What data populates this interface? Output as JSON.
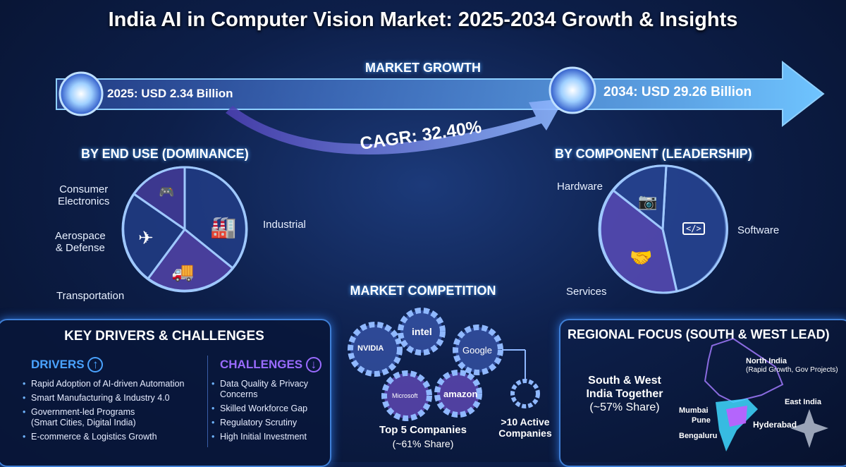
{
  "title": "India AI in Computer Vision Market: 2025-2034 Growth & Insights",
  "growth": {
    "heading": "MARKET GROWTH",
    "start": "2025: USD 2.34 Billion",
    "end": "2034: USD 29.26 Billion",
    "cagr": "CAGR: 32.40%"
  },
  "end_use": {
    "heading": "BY END USE (DOMINANCE)",
    "segments": [
      {
        "label": "Industrial",
        "icon": "factory-robot-icon"
      },
      {
        "label": "Transportation",
        "icon": "truck-icon"
      },
      {
        "label": "Aerospace\n& Defense",
        "icon": "airplane-icon"
      },
      {
        "label": "Consumer\nElectronics",
        "icon": "gadgets-icon"
      }
    ]
  },
  "component": {
    "heading": "BY COMPONENT (LEADERSHIP)",
    "segments": [
      {
        "label": "Software",
        "icon": "code-window-icon"
      },
      {
        "label": "Services",
        "icon": "handshake-icon"
      },
      {
        "label": "Hardware",
        "icon": "camera-icon"
      }
    ]
  },
  "competition": {
    "heading": "MARKET COMPETITION",
    "companies": [
      "NVIDIA",
      "intel",
      "Google",
      "Microsoft",
      "amazon"
    ],
    "top5": "Top 5 Companies",
    "top5_share": "(~61% Share)",
    "active": ">10 Active",
    "active2": "Companies"
  },
  "drivers_panel": {
    "heading": "KEY DRIVERS & CHALLENGES",
    "drivers_title": "DRIVERS",
    "drivers": [
      "Rapid Adoption of AI-driven Automation",
      "Smart Manufacturing & Industry 4.0",
      "Government-led Programs (Smart Cities, Digital India)",
      "E-commerce & Logistics Growth"
    ],
    "challenges_title": "CHALLENGES",
    "challenges": [
      "Data Quality & Privacy Concerns",
      "Skilled Workforce Gap",
      "Regulatory Scrutiny",
      "High Initial Investment"
    ]
  },
  "regional": {
    "heading": "REGIONAL FOCUS (SOUTH & WEST LEAD)",
    "summary1": "South & West",
    "summary2": "India Together",
    "share": "(~57% Share)",
    "north": "North India",
    "north_note": "(Rapid Growth, Gov Projects)",
    "east": "East India",
    "mumbai": "Mumbai",
    "pune": "Pune",
    "bengaluru": "Bengaluru",
    "hyderabad": "Hyderabad"
  },
  "colors": {
    "accent_blue": "#4aa3ff",
    "accent_purple": "#9a6bff",
    "background": "#0d1f4a"
  }
}
